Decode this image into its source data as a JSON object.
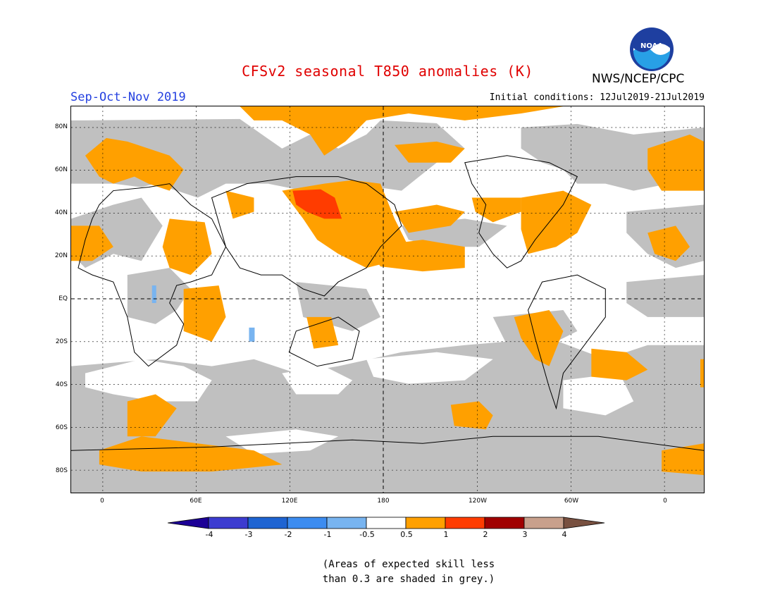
{
  "title": "CFSv2 seasonal T850 anomalies (K)",
  "season": "Sep-Oct-Nov 2019",
  "initial_conditions": "Initial conditions: 12Jul2019-21Jul2019",
  "org": "NWS/NCEP/CPC",
  "logo_text": "NOAA",
  "lat_labels": [
    "80N",
    "60N",
    "40N",
    "20N",
    "EQ",
    "20S",
    "40S",
    "60S",
    "80S"
  ],
  "lon_labels": [
    "0",
    "60E",
    "120E",
    "180",
    "120W",
    "60W",
    "0"
  ],
  "colorbar": {
    "labels": [
      "-4",
      "-3",
      "-2",
      "-1",
      "-0.5",
      "0.5",
      "1",
      "2",
      "3",
      "4"
    ],
    "colors": [
      "#1c0096",
      "#3c3cd0",
      "#1e64d2",
      "#3c8cf0",
      "#78b4f0",
      "#ffffff",
      "#ffa000",
      "#ff3c00",
      "#a00000",
      "#c8a08c",
      "#785040"
    ]
  },
  "note_line1": "(Areas of expected skill less",
  "note_line2": "than 0.3 are shaded in grey.)",
  "legend_colors": {
    "grey": "#c0c0c0",
    "orange": "#ffa000",
    "red": "#ff3c00",
    "blue": "#78b4f0"
  }
}
